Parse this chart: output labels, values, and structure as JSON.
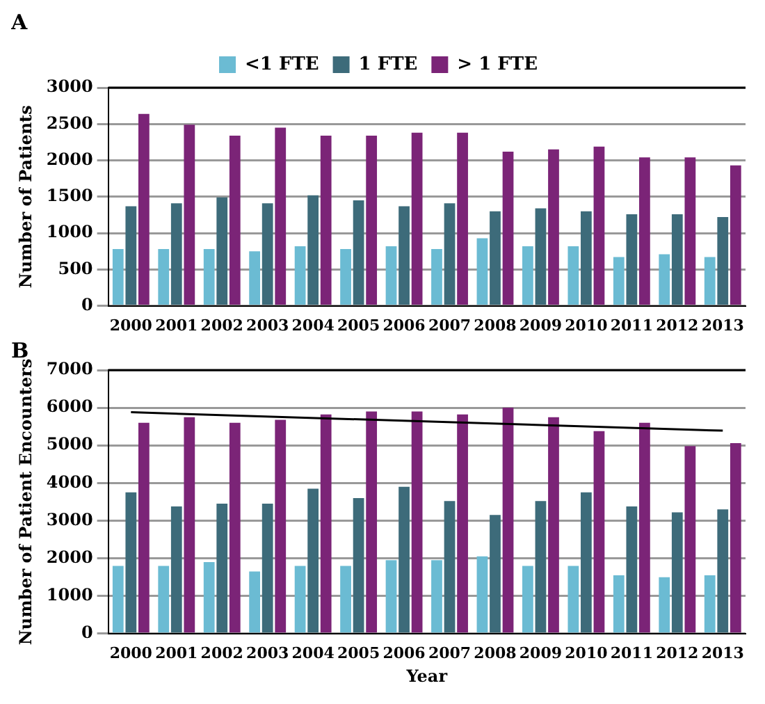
{
  "chart_data": [
    {
      "type": "bar",
      "title": "A",
      "ylabel": "Number of Patients",
      "categories": [
        "2000",
        "2001",
        "2002",
        "2003",
        "2004",
        "2005",
        "2006",
        "2007",
        "2008",
        "2009",
        "2010",
        "2011",
        "2012",
        "2013"
      ],
      "ylim": [
        0,
        3000
      ],
      "yticks": [
        0,
        500,
        1000,
        1500,
        2000,
        2500,
        3000
      ],
      "grid": "y",
      "legend": "top",
      "series": [
        {
          "name": "<1 FTE",
          "color": "#6bbbd3",
          "values": [
            780,
            780,
            780,
            750,
            820,
            780,
            820,
            780,
            930,
            820,
            820,
            670,
            710,
            670
          ]
        },
        {
          "name": "1 FTE",
          "color": "#3d6b7a",
          "values": [
            1370,
            1410,
            1490,
            1410,
            1520,
            1450,
            1370,
            1410,
            1300,
            1340,
            1300,
            1260,
            1260,
            1220
          ]
        },
        {
          "name": "> 1 FTE",
          "color": "#7b2477",
          "values": [
            2640,
            2490,
            2340,
            2450,
            2340,
            2340,
            2380,
            2380,
            2120,
            2150,
            2190,
            2040,
            2040,
            1930
          ]
        }
      ]
    },
    {
      "type": "bar",
      "title": "B",
      "ylabel": "Number of Patient Encounters",
      "xlabel": "Year",
      "categories": [
        "2000",
        "2001",
        "2002",
        "2003",
        "2004",
        "2005",
        "2006",
        "2007",
        "2008",
        "2009",
        "2010",
        "2011",
        "2012",
        "2013"
      ],
      "ylim": [
        0,
        7000
      ],
      "yticks": [
        0,
        1000,
        2000,
        3000,
        4000,
        5000,
        6000,
        7000
      ],
      "grid": "y",
      "legend": false,
      "series": [
        {
          "color": "#6bbbd3",
          "values": [
            1800,
            1800,
            1900,
            1650,
            1800,
            1800,
            1950,
            1950,
            2050,
            1800,
            1800,
            1550,
            1500,
            1550
          ]
        },
        {
          "color": "#3d6b7a",
          "values": [
            3750,
            3380,
            3450,
            3450,
            3850,
            3600,
            3900,
            3520,
            3150,
            3520,
            3750,
            3380,
            3220,
            3300
          ]
        },
        {
          "color": "#7b2477",
          "values": [
            5600,
            5750,
            5600,
            5680,
            5820,
            5900,
            5900,
            5820,
            6000,
            5750,
            5380,
            5600,
            4980,
            5060
          ]
        },
        {
          "type": "line",
          "color": "#000000",
          "marker": "none",
          "values": [
            5880,
            null,
            null,
            null,
            null,
            null,
            null,
            null,
            null,
            null,
            null,
            null,
            null,
            5390
          ]
        }
      ]
    }
  ]
}
